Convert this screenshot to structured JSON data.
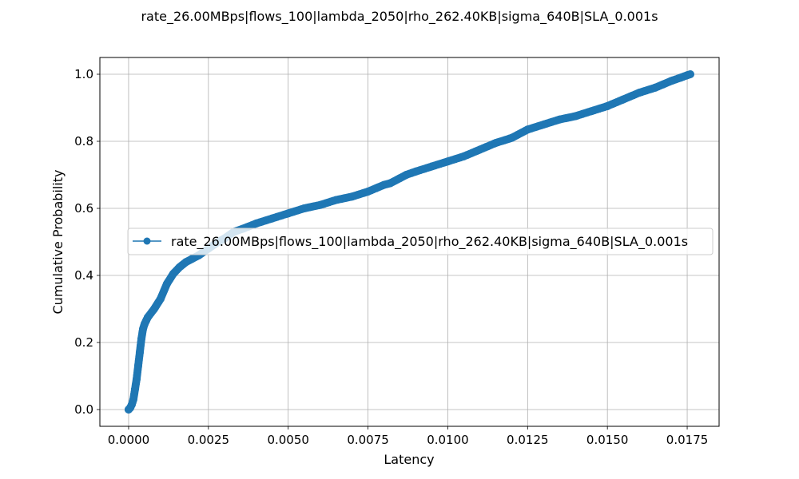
{
  "chart_data": {
    "type": "line",
    "title": "rate_26.00MBps|flows_100|lambda_2050|rho_262.40KB|sigma_640B|SLA_0.001s",
    "xlabel": "Latency",
    "ylabel": "Cumulative Probability",
    "xlim": [
      -0.0009,
      0.0185
    ],
    "ylim": [
      -0.05,
      1.05
    ],
    "x_ticks": [
      "0.0000",
      "0.0025",
      "0.0050",
      "0.0075",
      "0.0100",
      "0.0125",
      "0.0150",
      "0.0175"
    ],
    "x_tick_values": [
      0,
      0.0025,
      0.005,
      0.0075,
      0.01,
      0.0125,
      0.015,
      0.0175
    ],
    "y_ticks": [
      "0.0",
      "0.2",
      "0.4",
      "0.6",
      "0.8",
      "1.0"
    ],
    "y_tick_values": [
      0,
      0.2,
      0.4,
      0.6,
      0.8,
      1.0
    ],
    "grid": true,
    "legend_position": "center-left",
    "series": [
      {
        "name": "rate_26.00MBps|flows_100|lambda_2050|rho_262.40KB|sigma_640B|SLA_0.001s",
        "color": "#1f77b4",
        "marker": "circle",
        "x": [
          0,
          5e-05,
          0.0001,
          0.00015,
          0.0002,
          0.00025,
          0.0003,
          0.00035,
          0.0004,
          0.00045,
          0.0005,
          0.00055,
          0.0006,
          0.0008,
          0.001,
          0.0012,
          0.0014,
          0.0016,
          0.0018,
          0.002,
          0.0022,
          0.0025,
          0.0028,
          0.003,
          0.0033,
          0.0036,
          0.004,
          0.0045,
          0.005,
          0.0055,
          0.006,
          0.0065,
          0.007,
          0.0075,
          0.008,
          0.0082,
          0.0085,
          0.0087,
          0.009,
          0.0095,
          0.01,
          0.0105,
          0.011,
          0.0115,
          0.012,
          0.0125,
          0.013,
          0.0135,
          0.014,
          0.0145,
          0.015,
          0.0155,
          0.016,
          0.0165,
          0.017,
          0.0173,
          0.0175,
          0.0176
        ],
        "y": [
          0,
          0.005,
          0.015,
          0.03,
          0.06,
          0.09,
          0.13,
          0.17,
          0.21,
          0.24,
          0.255,
          0.265,
          0.275,
          0.3,
          0.33,
          0.375,
          0.405,
          0.425,
          0.44,
          0.45,
          0.46,
          0.48,
          0.5,
          0.51,
          0.53,
          0.54,
          0.555,
          0.57,
          0.585,
          0.6,
          0.61,
          0.625,
          0.635,
          0.65,
          0.67,
          0.675,
          0.69,
          0.7,
          0.71,
          0.725,
          0.74,
          0.755,
          0.775,
          0.795,
          0.81,
          0.835,
          0.85,
          0.865,
          0.875,
          0.89,
          0.905,
          0.925,
          0.945,
          0.96,
          0.98,
          0.99,
          0.997,
          1.0
        ]
      }
    ]
  }
}
